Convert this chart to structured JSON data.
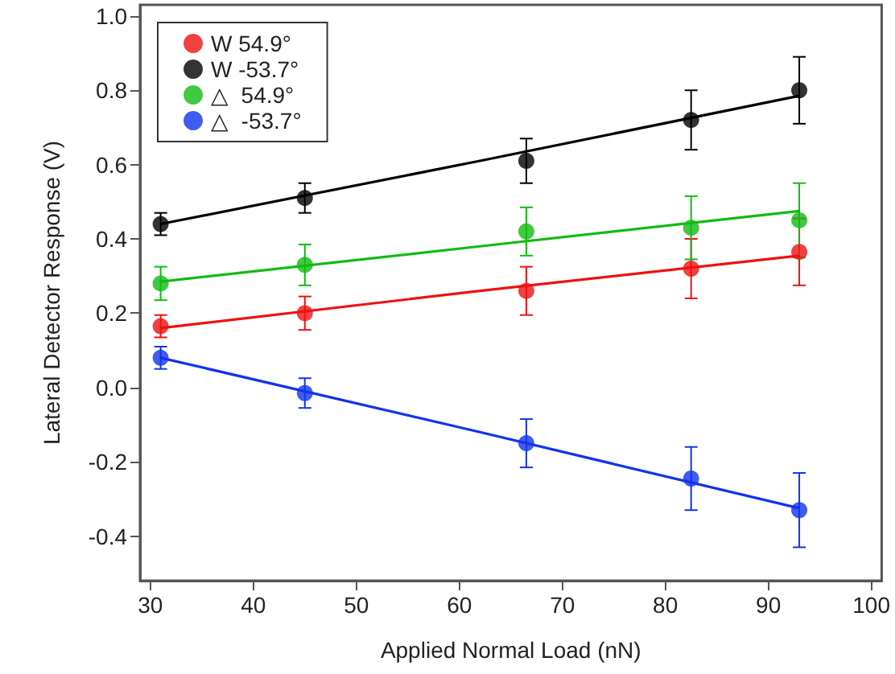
{
  "chart_data": {
    "type": "scatter",
    "xlabel": "Applied Normal Load (nN)",
    "ylabel": "Lateral Detector Response (V)",
    "xlim": [
      29,
      101
    ],
    "xticks": [
      30,
      40,
      50,
      60,
      70,
      80,
      90,
      100
    ],
    "ylim": [
      -0.52,
      1.03
    ],
    "yticks": [
      {
        "value": -0.4,
        "label": "-0.4"
      },
      {
        "value": -0.2,
        "label": "-0.2"
      },
      {
        "value": 0,
        "label": "0.0"
      },
      {
        "value": 0.2,
        "label": "0.2"
      },
      {
        "value": 0.4,
        "label": "0.4"
      },
      {
        "value": 0.6,
        "label": "0.6"
      },
      {
        "value": 0.8,
        "label": "0.8"
      },
      {
        "value": 1.0,
        "label": "1.0"
      }
    ],
    "grid": false,
    "legend": "top left",
    "marker": "circle",
    "x": [
      31,
      45,
      66.5,
      82.5,
      93
    ],
    "series": [
      {
        "name": "W 54.9°",
        "color": "#ee1111",
        "values": [
          0.165,
          0.2,
          0.26,
          0.32,
          0.365
        ],
        "errors": [
          0.03,
          0.045,
          0.065,
          0.08,
          0.09
        ]
      },
      {
        "name": "W -53.7°",
        "color": "#000000",
        "values": [
          0.44,
          0.51,
          0.61,
          0.72,
          0.8
        ],
        "errors": [
          0.03,
          0.04,
          0.06,
          0.08,
          0.09
        ]
      },
      {
        "name": "△  54.9°",
        "color": "#11bb11",
        "values": [
          0.28,
          0.33,
          0.42,
          0.43,
          0.45
        ],
        "errors": [
          0.045,
          0.055,
          0.065,
          0.085,
          0.1
        ]
      },
      {
        "name": "△  -53.7°",
        "color": "#1133ee",
        "values": [
          0.08,
          -0.015,
          -0.15,
          -0.245,
          -0.33
        ],
        "errors": [
          0.03,
          0.04,
          0.065,
          0.085,
          0.1
        ]
      },
      {
        "type": "line",
        "marker": "none",
        "color": "#ee1111",
        "x": [
          31,
          62,
          93
        ],
        "values": [
          0.16,
          0.26,
          0.355
        ]
      },
      {
        "type": "line",
        "marker": "none",
        "color": "#000000",
        "x": [
          31,
          62,
          93
        ],
        "values": [
          0.44,
          0.61,
          0.785
        ]
      },
      {
        "type": "line",
        "marker": "none",
        "color": "#11bb11",
        "x": [
          31,
          62,
          93
        ],
        "values": [
          0.285,
          0.38,
          0.475
        ]
      },
      {
        "type": "line",
        "marker": "none",
        "color": "#1133ee",
        "x": [
          31,
          62,
          93
        ],
        "values": [
          0.08,
          -0.12,
          -0.325
        ]
      }
    ]
  }
}
